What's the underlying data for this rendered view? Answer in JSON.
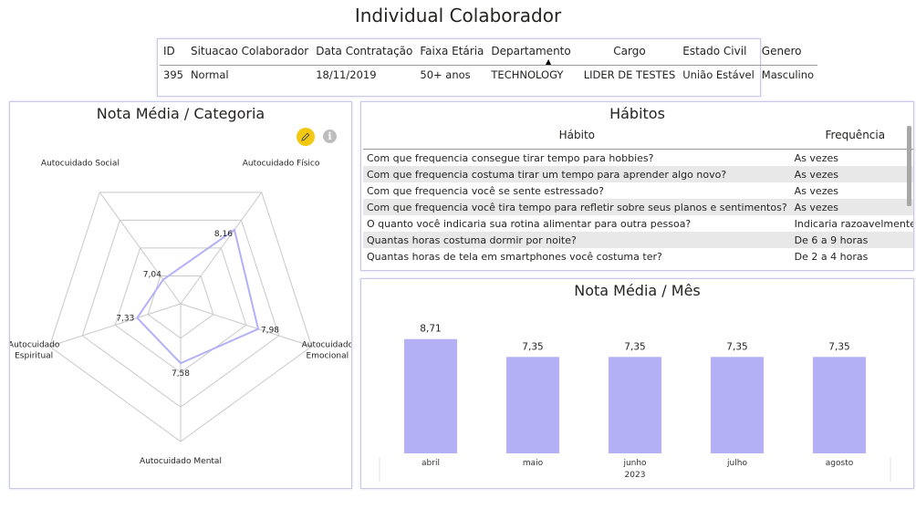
{
  "page_title": "Individual Colaborador",
  "info_table": {
    "headers": [
      "ID",
      "Situacao Colaborador",
      "Data Contratação",
      "Faixa Etária",
      "Departamento",
      "Cargo",
      "Estado Civil",
      "Genero"
    ],
    "row": [
      "395",
      "Normal",
      "18/11/2019",
      "50+ anos",
      "TECHNOLOGY",
      "LIDER DE TESTES",
      "União Estável",
      "Masculino"
    ]
  },
  "radar": {
    "title": "Nota Média / Categoria",
    "icons": [
      "pencil-icon",
      "info-icon"
    ],
    "info_glyph": "i"
  },
  "habits": {
    "title": "Hábitos",
    "headers": [
      "Hábito",
      "Frequência"
    ],
    "rows": [
      [
        "Com que frequencia consegue tirar tempo para hobbies?",
        "As vezes"
      ],
      [
        "Com que frequencia costuma tirar um tempo para aprender algo novo?",
        "As vezes"
      ],
      [
        "Com que frequencia você se sente estressado?",
        "As vezes"
      ],
      [
        "Com que frequencia você tira tempo para refletir sobre seus planos e sentimentos?",
        "As vezes"
      ],
      [
        "O quanto você indicaria sua rotina alimentar para outra pessoa?",
        "Indicaria razoavelmente"
      ],
      [
        "Quantas horas costuma dormir por noite?",
        "De 6 a 9 horas"
      ],
      [
        "Quantas horas de tela em smartphones você costuma ter?",
        "De 2 a 4 horas"
      ]
    ]
  },
  "bar": {
    "title": "Nota Média / Mês",
    "year_label": "2023"
  },
  "colors": {
    "bar": "#b3b0f6",
    "accent": "#9b94f0",
    "edit_button": "#f2c811"
  },
  "chart_data": [
    {
      "type": "radar",
      "title": "Nota Média / Categoria",
      "categories": [
        "Autocuidado Físico",
        "Autocuidado Emocional",
        "Autocuidado Mental",
        "Autocuidado Espiritual",
        "Autocuidado Social"
      ],
      "values": [
        8.16,
        7.98,
        7.58,
        7.33,
        7.04
      ],
      "value_labels": [
        "8,16",
        "7,98",
        "7,58",
        "7,33",
        "7,04"
      ],
      "rmin": 6.5,
      "rmax": 9,
      "grid": true
    },
    {
      "type": "bar",
      "title": "Nota Média / Mês",
      "categories": [
        "abril",
        "maio",
        "junho",
        "julho",
        "agosto"
      ],
      "values": [
        8.71,
        7.35,
        7.35,
        7.35,
        7.35
      ],
      "value_labels": [
        "8,71",
        "7,35",
        "7,35",
        "7,35",
        "7,35"
      ],
      "xlabel": "2023",
      "ylim": [
        0,
        10.5
      ],
      "grid": false
    }
  ]
}
